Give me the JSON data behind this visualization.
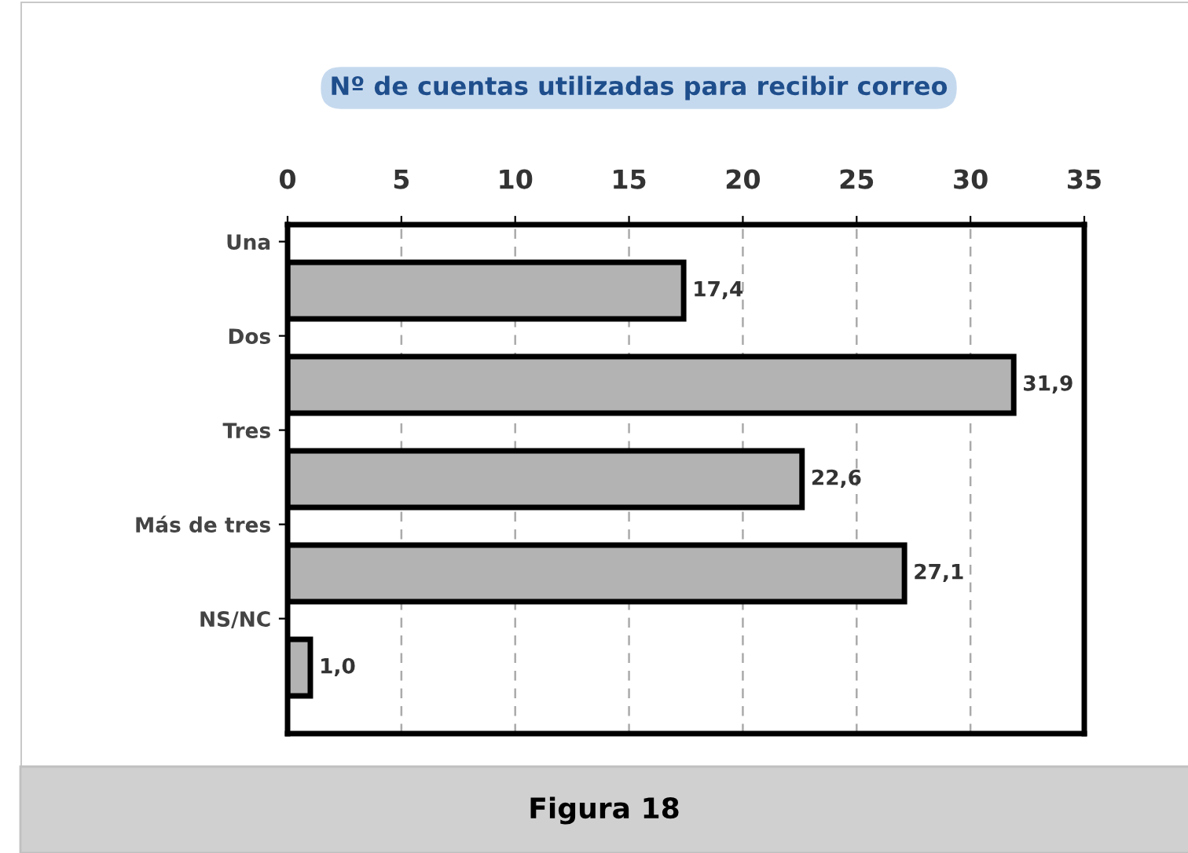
{
  "chart_data": {
    "type": "bar",
    "orientation": "horizontal",
    "title": "Nº de cuentas utilizadas para recibir correo",
    "categories": [
      "Una",
      "Dos",
      "Tres",
      "Más de tres",
      "NS/NC"
    ],
    "values": [
      17.4,
      31.9,
      22.6,
      27.1,
      1.0
    ],
    "value_labels": [
      "17,4",
      "31,9",
      "22,6",
      "27,1",
      "1,0"
    ],
    "color": "#b3b3b3",
    "xlim": [
      0,
      35
    ],
    "xticks": [
      0,
      5,
      10,
      15,
      20,
      25,
      30,
      35
    ],
    "grid": "x",
    "annotations": [
      "Figura 18"
    ]
  }
}
